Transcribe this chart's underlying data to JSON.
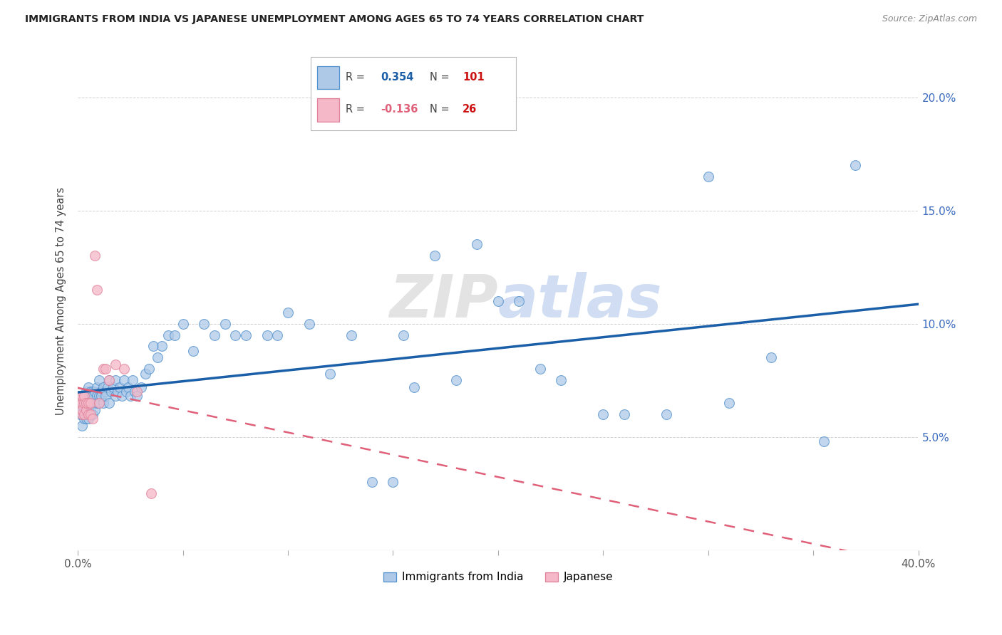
{
  "title": "IMMIGRANTS FROM INDIA VS JAPANESE UNEMPLOYMENT AMONG AGES 65 TO 74 YEARS CORRELATION CHART",
  "source": "Source: ZipAtlas.com",
  "ylabel": "Unemployment Among Ages 65 to 74 years",
  "legend_india": "Immigrants from India",
  "legend_japan": "Japanese",
  "r_india": 0.354,
  "n_india": 101,
  "r_japan": -0.136,
  "n_japan": 26,
  "xlim": [
    0.0,
    0.4
  ],
  "ylim": [
    0.0,
    0.22
  ],
  "xticks": [
    0.0,
    0.05,
    0.1,
    0.15,
    0.2,
    0.25,
    0.3,
    0.35,
    0.4
  ],
  "yticks": [
    0.0,
    0.05,
    0.1,
    0.15,
    0.2
  ],
  "blue_fill": "#aec9e8",
  "pink_fill": "#f4b8c8",
  "blue_edge": "#5090cc",
  "pink_edge": "#e08098",
  "blue_line": "#1a5fa8",
  "pink_line": "#e0607a",
  "bg_color": "#ffffff",
  "grid_color": "#cccccc",
  "title_color": "#222222",
  "watermark_color": "#e2e2e2",
  "india_x": [
    0.001,
    0.001,
    0.002,
    0.002,
    0.002,
    0.002,
    0.003,
    0.003,
    0.003,
    0.003,
    0.003,
    0.004,
    0.004,
    0.004,
    0.004,
    0.004,
    0.005,
    0.005,
    0.005,
    0.005,
    0.005,
    0.006,
    0.006,
    0.006,
    0.006,
    0.007,
    0.007,
    0.007,
    0.007,
    0.008,
    0.008,
    0.008,
    0.009,
    0.009,
    0.009,
    0.01,
    0.01,
    0.01,
    0.011,
    0.011,
    0.012,
    0.012,
    0.013,
    0.013,
    0.014,
    0.015,
    0.015,
    0.016,
    0.017,
    0.018,
    0.018,
    0.019,
    0.02,
    0.021,
    0.022,
    0.023,
    0.024,
    0.025,
    0.026,
    0.027,
    0.028,
    0.03,
    0.032,
    0.034,
    0.036,
    0.038,
    0.04,
    0.043,
    0.046,
    0.05,
    0.055,
    0.06,
    0.065,
    0.07,
    0.075,
    0.08,
    0.09,
    0.095,
    0.1,
    0.11,
    0.12,
    0.13,
    0.14,
    0.15,
    0.155,
    0.16,
    0.17,
    0.18,
    0.19,
    0.2,
    0.21,
    0.22,
    0.23,
    0.25,
    0.26,
    0.28,
    0.3,
    0.31,
    0.33,
    0.355,
    0.37
  ],
  "india_y": [
    0.065,
    0.06,
    0.068,
    0.062,
    0.06,
    0.055,
    0.065,
    0.068,
    0.062,
    0.058,
    0.065,
    0.068,
    0.065,
    0.06,
    0.058,
    0.07,
    0.065,
    0.062,
    0.068,
    0.058,
    0.072,
    0.065,
    0.06,
    0.07,
    0.068,
    0.065,
    0.07,
    0.06,
    0.068,
    0.065,
    0.07,
    0.062,
    0.068,
    0.072,
    0.065,
    0.068,
    0.075,
    0.065,
    0.07,
    0.068,
    0.072,
    0.065,
    0.07,
    0.068,
    0.072,
    0.075,
    0.065,
    0.07,
    0.072,
    0.068,
    0.075,
    0.07,
    0.072,
    0.068,
    0.075,
    0.07,
    0.072,
    0.068,
    0.075,
    0.07,
    0.068,
    0.072,
    0.078,
    0.08,
    0.09,
    0.085,
    0.09,
    0.095,
    0.095,
    0.1,
    0.088,
    0.1,
    0.095,
    0.1,
    0.095,
    0.095,
    0.095,
    0.095,
    0.105,
    0.1,
    0.078,
    0.095,
    0.03,
    0.03,
    0.095,
    0.072,
    0.13,
    0.075,
    0.135,
    0.11,
    0.11,
    0.08,
    0.075,
    0.06,
    0.06,
    0.06,
    0.165,
    0.065,
    0.085,
    0.048,
    0.17
  ],
  "japan_x": [
    0.001,
    0.001,
    0.002,
    0.002,
    0.002,
    0.002,
    0.003,
    0.003,
    0.003,
    0.004,
    0.004,
    0.005,
    0.005,
    0.006,
    0.006,
    0.007,
    0.008,
    0.009,
    0.01,
    0.012,
    0.013,
    0.015,
    0.018,
    0.022,
    0.028,
    0.035
  ],
  "japan_y": [
    0.065,
    0.068,
    0.065,
    0.06,
    0.068,
    0.062,
    0.065,
    0.06,
    0.068,
    0.062,
    0.065,
    0.065,
    0.06,
    0.065,
    0.06,
    0.058,
    0.13,
    0.115,
    0.065,
    0.08,
    0.08,
    0.075,
    0.082,
    0.08,
    0.07,
    0.025
  ]
}
